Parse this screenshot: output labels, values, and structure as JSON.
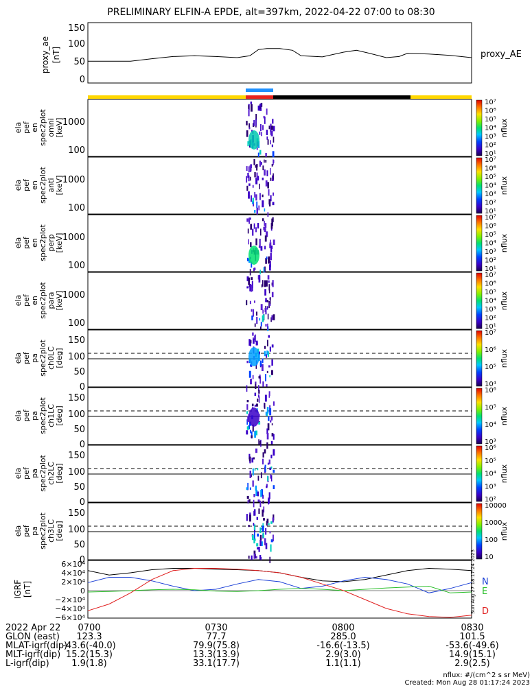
{
  "title": "PRELIMINARY ELFIN-A EPDE, alt=397km, 2022-04-22 07:00 to 08:30",
  "proxy_ae": {
    "ylabel": [
      "proxy_ae",
      "[nT]"
    ],
    "ticks": [
      "150",
      "100",
      "50",
      "0"
    ],
    "legend": "proxy_AE",
    "ylim": [
      0,
      150
    ],
    "x": [
      0,
      5,
      10,
      15,
      20,
      25,
      30,
      35,
      38,
      40,
      42,
      45,
      48,
      50,
      55,
      60,
      63,
      66,
      70,
      73,
      75,
      80,
      85,
      90
    ],
    "y": [
      50,
      50,
      50,
      57,
      63,
      65,
      63,
      60,
      65,
      82,
      85,
      85,
      80,
      65,
      62,
      75,
      80,
      72,
      60,
      63,
      72,
      70,
      66,
      60
    ]
  },
  "bar": {
    "colors": {
      "yellow": "#ffd700",
      "black": "#000000",
      "blue": "#1e90ff",
      "red": "#e8231e"
    }
  },
  "energy_panels": [
    {
      "ylabel": [
        "ela",
        "pef",
        "en",
        "spec2plot",
        "omni",
        "[keV]"
      ],
      "ticks": [
        "1000",
        "100"
      ]
    },
    {
      "ylabel": [
        "ela",
        "pef",
        "en",
        "spec2plot",
        "anti",
        "[keV]"
      ],
      "ticks": [
        "1000",
        "100"
      ]
    },
    {
      "ylabel": [
        "ela",
        "pef",
        "en",
        "spec2plot",
        "perp",
        "[keV]"
      ],
      "ticks": [
        "1000",
        "100"
      ]
    },
    {
      "ylabel": [
        "ela",
        "pef",
        "en",
        "spec2plot",
        "para",
        "[keV]"
      ],
      "ticks": [
        "1000",
        "100"
      ]
    }
  ],
  "pa_panels": [
    {
      "ylabel": [
        "ela",
        "pef",
        "pa",
        "spec2plot",
        "ch0LC",
        "[deg]"
      ],
      "ticks": [
        "150",
        "100",
        "50",
        "0"
      ]
    },
    {
      "ylabel": [
        "ela",
        "pef",
        "pa",
        "spec2plot",
        "ch1LC",
        "[deg]"
      ],
      "ticks": [
        "150",
        "100",
        "50",
        "0"
      ]
    },
    {
      "ylabel": [
        "ela",
        "pef",
        "pa",
        "spec2plot",
        "ch2LC",
        "[deg]"
      ],
      "ticks": [
        "150",
        "100",
        "50",
        "0"
      ]
    },
    {
      "ylabel": [
        "ela",
        "pef",
        "pa",
        "spec2plot",
        "ch3LC",
        "[deg]"
      ],
      "ticks": [
        "150",
        "100",
        "50",
        "0"
      ]
    }
  ],
  "colorbars": [
    {
      "labels": [
        "10⁷",
        "10⁶",
        "10⁵",
        "10⁴",
        "10³",
        "10²",
        "10¹"
      ],
      "unit": "nflux"
    },
    {
      "labels": [
        "10⁷",
        "10⁶",
        "10⁵",
        "10⁴",
        "10³",
        "10²",
        "10¹"
      ],
      "unit": "nflux"
    },
    {
      "labels": [
        "10⁷",
        "10⁶",
        "10⁵",
        "10⁴",
        "10³",
        "10²",
        "10¹"
      ],
      "unit": "nflux"
    },
    {
      "labels": [
        "10⁷",
        "10⁶",
        "10⁵",
        "10⁴",
        "10³",
        "10²",
        "10¹"
      ],
      "unit": "nflux"
    },
    {
      "labels": [
        "10⁷",
        "10⁶",
        "10⁵",
        "10⁴"
      ],
      "unit": "nflux"
    },
    {
      "labels": [
        "10⁶",
        "10⁵",
        "10⁴",
        "10³"
      ],
      "unit": "nflux"
    },
    {
      "labels": [
        "10⁶",
        "10⁵",
        "10⁴",
        "10³",
        "10²"
      ],
      "unit": "nflux"
    },
    {
      "labels": [
        "10000",
        "1000",
        "100",
        "10"
      ],
      "unit": "nflux"
    }
  ],
  "igrf": {
    "ylabel": [
      "IGRF",
      "[nT]"
    ],
    "ticks": [
      "6×10⁴",
      "4×10⁴",
      "2×10⁴",
      "0",
      "−2×10⁴",
      "−4×10⁴",
      "−6×10⁴"
    ],
    "legend": [
      {
        "name": "N",
        "color": "#1a3fd6"
      },
      {
        "name": "E",
        "color": "#2bbf2b"
      },
      {
        "name": "D",
        "color": "#e02020"
      }
    ],
    "ylim": [
      -60000,
      60000
    ],
    "x": [
      0,
      5,
      10,
      15,
      20,
      25,
      30,
      35,
      40,
      45,
      50,
      55,
      60,
      65,
      70,
      75,
      80,
      85,
      90
    ],
    "total": [
      45000,
      35000,
      40000,
      47000,
      50000,
      50000,
      48000,
      47000,
      45000,
      40000,
      30000,
      22000,
      20000,
      25000,
      35000,
      45000,
      50000,
      48000,
      45000
    ],
    "N": [
      18000,
      30000,
      30000,
      22000,
      10000,
      0,
      3000,
      15000,
      25000,
      20000,
      5000,
      10000,
      22000,
      30000,
      25000,
      15000,
      -5000,
      5000,
      18000
    ],
    "E": [
      -3000,
      -2000,
      0,
      2000,
      3000,
      2000,
      -1000,
      -2000,
      0,
      3000,
      5000,
      3000,
      0,
      3000,
      6000,
      8000,
      10000,
      -5000,
      -3000
    ],
    "D": [
      -45000,
      -30000,
      -5000,
      25000,
      45000,
      50000,
      50000,
      48000,
      45000,
      40000,
      30000,
      15000,
      0,
      -20000,
      -40000,
      -52000,
      -58000,
      -60000,
      -55000
    ]
  },
  "footer": {
    "rows": [
      {
        "label": "2022 Apr 22",
        "vals": [
          "0700",
          "0730",
          "0800",
          "0830"
        ]
      },
      {
        "label": "GLON (east)",
        "vals": [
          "123.3",
          "77.7",
          "285.0",
          "101.5"
        ]
      },
      {
        "label": "MLAT-igrf(dip)",
        "vals": [
          "-43.6(-40.0)",
          "79.9(75.8)",
          "-16.6(-13.5)",
          "-53.6(-49.6)"
        ]
      },
      {
        "label": "MLT-igrf(dip)",
        "vals": [
          "15.2(15.3)",
          "13.3(13.9)",
          "2.9(3.0)",
          "14.9(15.1)"
        ]
      },
      {
        "label": "L-igrf(dip)",
        "vals": [
          "1.9(1.8)",
          "33.1(17.7)",
          "1.1(1.1)",
          "2.9(2.5)"
        ]
      }
    ],
    "units": "nflux: #/(cm^2 s sr MeV)",
    "created": "Created: Mon Aug 28 01:17:24 2023",
    "side_stamp": "Sun Aug 27 18:17:24 2023"
  }
}
